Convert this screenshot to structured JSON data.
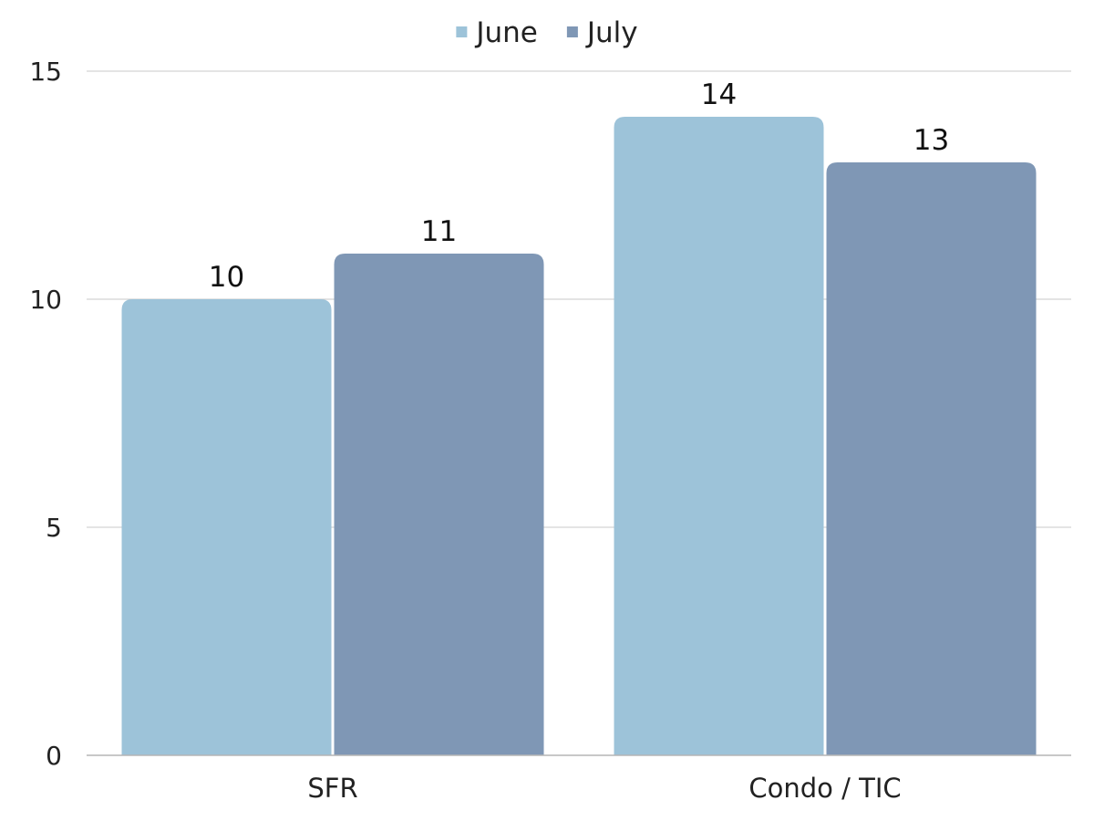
{
  "chart_data": {
    "type": "bar",
    "title": "",
    "xlabel": "",
    "ylabel": "",
    "categories": [
      "SFR",
      "Condo / TIC"
    ],
    "series": [
      {
        "name": "June",
        "values": [
          10,
          14
        ],
        "color": "#9DC3D9"
      },
      {
        "name": "July",
        "values": [
          11,
          13
        ],
        "color": "#7F97B5"
      }
    ],
    "ylim": [
      0,
      15
    ],
    "yticks": [
      0,
      5,
      10,
      15
    ],
    "grid": true,
    "legend_position": "top-center",
    "data_labels": true
  }
}
